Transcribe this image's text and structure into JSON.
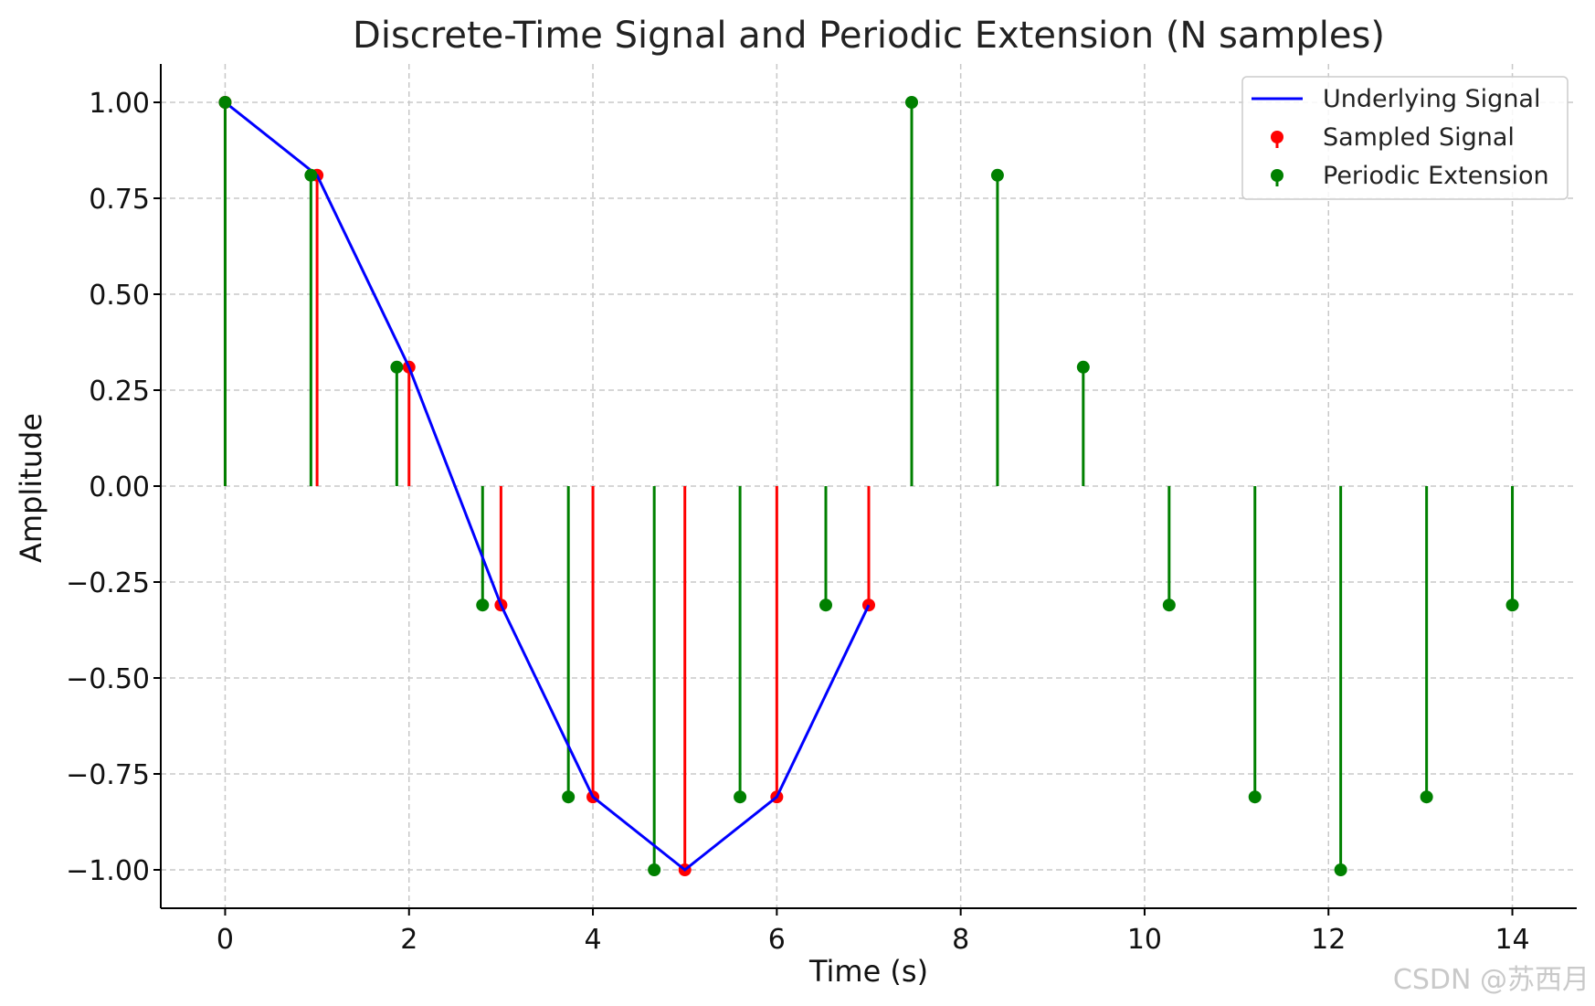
{
  "chart_data": {
    "type": "stem",
    "title": "Discrete-Time Signal and Periodic Extension (N samples)",
    "xlabel": "Time (s)",
    "ylabel": "Amplitude",
    "xlim": [
      -0.7,
      14.7
    ],
    "ylim": [
      -1.1,
      1.1
    ],
    "xticks": [
      0,
      2,
      4,
      6,
      8,
      10,
      12,
      14
    ],
    "xtick_labels": [
      "0",
      "2",
      "4",
      "6",
      "8",
      "10",
      "12",
      "14"
    ],
    "yticks": [
      1.0,
      0.75,
      0.5,
      0.25,
      0.0,
      -0.25,
      -0.5,
      -0.75,
      -1.0
    ],
    "ytick_labels": [
      "1.00",
      "0.75",
      "0.50",
      "0.25",
      "0.00",
      "−0.25",
      "−0.50",
      "−0.75",
      "−1.00"
    ],
    "grid": true,
    "legend_position": "top-right",
    "series": [
      {
        "name": "Underlying Signal",
        "kind": "line",
        "color": "#0000ff",
        "x": [
          0,
          1,
          2,
          3,
          4,
          5,
          6,
          7
        ],
        "y": [
          1.0,
          0.81,
          0.31,
          -0.31,
          -0.81,
          -1.0,
          -0.81,
          -0.31
        ]
      },
      {
        "name": "Sampled Signal",
        "kind": "stem",
        "color": "#ff0000",
        "x": [
          0,
          1,
          2,
          3,
          4,
          5,
          6,
          7
        ],
        "y": [
          1.0,
          0.81,
          0.31,
          -0.31,
          -0.81,
          -1.0,
          -0.81,
          -0.31
        ]
      },
      {
        "name": "Periodic Extension",
        "kind": "stem",
        "color": "#008000",
        "x": [
          0,
          0.933,
          1.867,
          2.8,
          3.733,
          4.667,
          5.6,
          6.533,
          7.467,
          8.4,
          9.333,
          10.267,
          11.2,
          12.133,
          13.067,
          14.0
        ],
        "y": [
          1.0,
          0.81,
          0.31,
          -0.31,
          -0.81,
          -1.0,
          -0.81,
          -0.31,
          1.0,
          0.81,
          0.31,
          -0.31,
          -0.81,
          -1.0,
          -0.81,
          -0.31
        ]
      }
    ]
  },
  "watermark": "CSDN @苏西月"
}
